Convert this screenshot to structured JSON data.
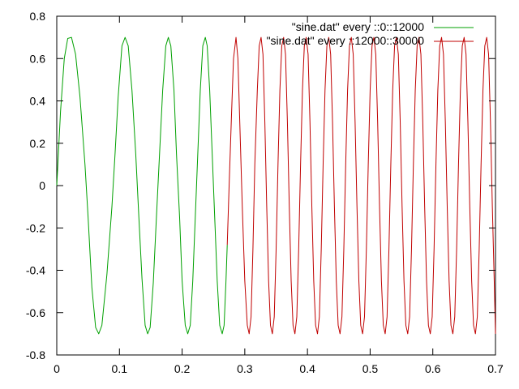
{
  "chart_data": {
    "type": "line",
    "title": "",
    "xlabel": "",
    "ylabel": "",
    "xlim": [
      0,
      0.7
    ],
    "ylim": [
      -0.8,
      0.8
    ],
    "grid": false,
    "legend_position": "top-right",
    "x_ticks": [
      0,
      0.1,
      0.2,
      0.3,
      0.4,
      0.5,
      0.6,
      0.7
    ],
    "x_tick_labels": [
      "0",
      "0.1",
      "0.2",
      "0.3",
      "0.4",
      "0.5",
      "0.6",
      "0.7"
    ],
    "y_ticks": [
      -0.8,
      -0.6,
      -0.4,
      -0.2,
      0,
      0.2,
      0.4,
      0.6,
      0.8
    ],
    "y_tick_labels": [
      "-0.8",
      "-0.6",
      "-0.4",
      "-0.2",
      "0",
      "0.2",
      "0.4",
      "0.6",
      "0.8"
    ],
    "series": [
      {
        "name": "\"sine.dat\" every ::0::12000",
        "color": "#00a000",
        "points": [
          [
            0.0,
            0.0
          ],
          [
            0.006,
            0.35
          ],
          [
            0.012,
            0.6
          ],
          [
            0.0175,
            0.695
          ],
          [
            0.0235,
            0.7
          ],
          [
            0.03,
            0.62
          ],
          [
            0.037,
            0.42
          ],
          [
            0.045,
            0.1
          ],
          [
            0.05,
            -0.15
          ],
          [
            0.056,
            -0.48
          ],
          [
            0.062,
            -0.67
          ],
          [
            0.067,
            -0.7
          ],
          [
            0.072,
            -0.66
          ],
          [
            0.08,
            -0.42
          ],
          [
            0.088,
            -0.1
          ],
          [
            0.093,
            0.15
          ],
          [
            0.098,
            0.42
          ],
          [
            0.104,
            0.66
          ],
          [
            0.109,
            0.7
          ],
          [
            0.114,
            0.66
          ],
          [
            0.12,
            0.45
          ],
          [
            0.126,
            0.15
          ],
          [
            0.131,
            -0.15
          ],
          [
            0.136,
            -0.44
          ],
          [
            0.141,
            -0.66
          ],
          [
            0.145,
            -0.7
          ],
          [
            0.149,
            -0.67
          ],
          [
            0.154,
            -0.46
          ],
          [
            0.159,
            -0.15
          ],
          [
            0.164,
            0.15
          ],
          [
            0.169,
            0.45
          ],
          [
            0.174,
            0.66
          ],
          [
            0.178,
            0.7
          ],
          [
            0.182,
            0.66
          ],
          [
            0.187,
            0.45
          ],
          [
            0.191,
            0.15
          ],
          [
            0.196,
            -0.15
          ],
          [
            0.2,
            -0.45
          ],
          [
            0.205,
            -0.66
          ],
          [
            0.209,
            -0.7
          ],
          [
            0.213,
            -0.66
          ],
          [
            0.217,
            -0.45
          ],
          [
            0.221,
            -0.15
          ],
          [
            0.225,
            0.15
          ],
          [
            0.229,
            0.45
          ],
          [
            0.233,
            0.66
          ],
          [
            0.237,
            0.7
          ],
          [
            0.24,
            0.66
          ],
          [
            0.244,
            0.45
          ],
          [
            0.248,
            0.15
          ],
          [
            0.252,
            -0.15
          ],
          [
            0.256,
            -0.45
          ],
          [
            0.26,
            -0.66
          ],
          [
            0.264,
            -0.7
          ],
          [
            0.267,
            -0.66
          ],
          [
            0.27,
            -0.45
          ],
          [
            0.272,
            -0.28
          ]
        ]
      },
      {
        "name": "\"sine.dat\" every ::12000::30000",
        "color": "#c00000",
        "points": [
          [
            0.272,
            -0.28
          ],
          [
            0.275,
            0.0
          ],
          [
            0.279,
            0.35
          ],
          [
            0.282,
            0.6
          ],
          [
            0.286,
            0.7
          ],
          [
            0.289,
            0.6
          ],
          [
            0.292,
            0.3
          ],
          [
            0.296,
            -0.1
          ],
          [
            0.3,
            -0.45
          ],
          [
            0.304,
            -0.66
          ],
          [
            0.307,
            -0.7
          ],
          [
            0.31,
            -0.62
          ],
          [
            0.313,
            -0.3
          ],
          [
            0.316,
            0.1
          ],
          [
            0.32,
            0.45
          ],
          [
            0.323,
            0.66
          ],
          [
            0.326,
            0.7
          ],
          [
            0.329,
            0.62
          ],
          [
            0.332,
            0.3
          ],
          [
            0.335,
            -0.1
          ],
          [
            0.338,
            -0.45
          ],
          [
            0.341,
            -0.66
          ],
          [
            0.344,
            -0.7
          ],
          [
            0.347,
            -0.62
          ],
          [
            0.35,
            -0.3
          ],
          [
            0.353,
            0.1
          ],
          [
            0.356,
            0.45
          ],
          [
            0.359,
            0.66
          ],
          [
            0.362,
            0.7
          ],
          [
            0.365,
            0.62
          ],
          [
            0.368,
            0.3
          ],
          [
            0.371,
            -0.1
          ],
          [
            0.374,
            -0.45
          ],
          [
            0.377,
            -0.66
          ],
          [
            0.38,
            -0.7
          ],
          [
            0.383,
            -0.62
          ],
          [
            0.386,
            -0.3
          ],
          [
            0.389,
            0.1
          ],
          [
            0.392,
            0.45
          ],
          [
            0.395,
            0.66
          ],
          [
            0.398,
            0.7
          ],
          [
            0.401,
            0.62
          ],
          [
            0.404,
            0.3
          ],
          [
            0.407,
            -0.1
          ],
          [
            0.41,
            -0.45
          ],
          [
            0.413,
            -0.66
          ],
          [
            0.416,
            -0.7
          ],
          [
            0.419,
            -0.62
          ],
          [
            0.422,
            -0.3
          ],
          [
            0.425,
            0.1
          ],
          [
            0.428,
            0.45
          ],
          [
            0.431,
            0.66
          ],
          [
            0.434,
            0.7
          ],
          [
            0.437,
            0.62
          ],
          [
            0.44,
            0.3
          ],
          [
            0.443,
            -0.1
          ],
          [
            0.446,
            -0.45
          ],
          [
            0.449,
            -0.66
          ],
          [
            0.452,
            -0.7
          ],
          [
            0.455,
            -0.62
          ],
          [
            0.458,
            -0.3
          ],
          [
            0.461,
            0.1
          ],
          [
            0.464,
            0.45
          ],
          [
            0.467,
            0.66
          ],
          [
            0.47,
            0.7
          ],
          [
            0.473,
            0.62
          ],
          [
            0.476,
            0.3
          ],
          [
            0.479,
            -0.1
          ],
          [
            0.482,
            -0.45
          ],
          [
            0.485,
            -0.66
          ],
          [
            0.488,
            -0.7
          ],
          [
            0.491,
            -0.62
          ],
          [
            0.494,
            -0.3
          ],
          [
            0.497,
            0.1
          ],
          [
            0.5,
            0.45
          ],
          [
            0.503,
            0.66
          ],
          [
            0.506,
            0.7
          ],
          [
            0.509,
            0.62
          ],
          [
            0.512,
            0.3
          ],
          [
            0.515,
            -0.1
          ],
          [
            0.518,
            -0.45
          ],
          [
            0.521,
            -0.66
          ],
          [
            0.524,
            -0.7
          ],
          [
            0.527,
            -0.62
          ],
          [
            0.53,
            -0.3
          ],
          [
            0.533,
            0.1
          ],
          [
            0.536,
            0.45
          ],
          [
            0.539,
            0.66
          ],
          [
            0.542,
            0.7
          ],
          [
            0.545,
            0.62
          ],
          [
            0.548,
            0.3
          ],
          [
            0.551,
            -0.1
          ],
          [
            0.554,
            -0.45
          ],
          [
            0.557,
            -0.66
          ],
          [
            0.56,
            -0.7
          ],
          [
            0.563,
            -0.62
          ],
          [
            0.566,
            -0.3
          ],
          [
            0.569,
            0.1
          ],
          [
            0.572,
            0.45
          ],
          [
            0.575,
            0.66
          ],
          [
            0.578,
            0.7
          ],
          [
            0.581,
            0.62
          ],
          [
            0.584,
            0.3
          ],
          [
            0.587,
            -0.1
          ],
          [
            0.59,
            -0.45
          ],
          [
            0.593,
            -0.66
          ],
          [
            0.596,
            -0.7
          ],
          [
            0.599,
            -0.62
          ],
          [
            0.602,
            -0.3
          ],
          [
            0.605,
            0.1
          ],
          [
            0.608,
            0.45
          ],
          [
            0.611,
            0.66
          ],
          [
            0.614,
            0.7
          ],
          [
            0.617,
            0.62
          ],
          [
            0.62,
            0.3
          ],
          [
            0.623,
            -0.1
          ],
          [
            0.626,
            -0.45
          ],
          [
            0.629,
            -0.66
          ],
          [
            0.632,
            -0.7
          ],
          [
            0.635,
            -0.62
          ],
          [
            0.638,
            -0.3
          ],
          [
            0.641,
            0.1
          ],
          [
            0.644,
            0.45
          ],
          [
            0.647,
            0.66
          ],
          [
            0.65,
            0.7
          ],
          [
            0.653,
            0.62
          ],
          [
            0.656,
            0.3
          ],
          [
            0.659,
            -0.1
          ],
          [
            0.662,
            -0.45
          ],
          [
            0.665,
            -0.66
          ],
          [
            0.668,
            -0.7
          ],
          [
            0.671,
            -0.62
          ],
          [
            0.674,
            -0.3
          ],
          [
            0.677,
            0.1
          ],
          [
            0.68,
            0.45
          ],
          [
            0.683,
            0.66
          ],
          [
            0.686,
            0.7
          ],
          [
            0.689,
            0.62
          ],
          [
            0.692,
            0.3
          ],
          [
            0.695,
            -0.1
          ],
          [
            0.698,
            -0.45
          ],
          [
            0.7,
            -0.7
          ]
        ]
      }
    ]
  }
}
